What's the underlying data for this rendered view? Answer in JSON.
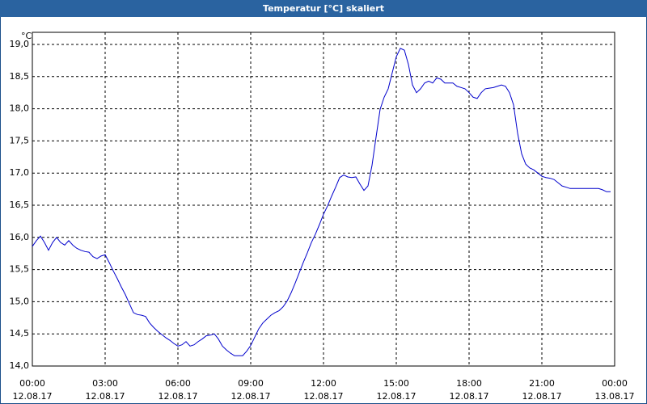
{
  "chart_data": {
    "type": "line",
    "title": "Temperatur [°C] skaliert",
    "y_unit": "°C",
    "color": "#0000cc",
    "grid": true,
    "x": [
      0,
      10,
      20,
      30,
      40,
      50,
      60,
      70,
      80,
      90,
      100,
      110,
      120,
      130,
      140,
      150,
      160,
      170,
      180,
      190,
      200,
      210,
      220,
      230,
      240,
      250,
      260,
      270,
      280,
      290,
      300,
      310,
      320,
      330,
      340,
      350,
      360,
      370,
      380,
      390,
      400,
      410,
      420,
      430,
      440,
      450,
      460,
      470,
      480,
      490,
      500,
      510,
      520,
      530,
      540,
      550,
      560,
      570,
      580,
      590,
      600,
      610,
      620,
      630,
      640,
      650,
      660,
      670,
      680,
      690,
      700,
      710,
      720,
      730,
      740,
      750,
      760,
      770,
      780,
      790,
      800,
      810,
      820,
      830,
      840,
      850,
      860,
      870,
      880,
      890,
      900,
      910,
      920,
      930,
      940,
      950,
      960,
      970,
      980,
      990,
      1000,
      1010,
      1020,
      1030,
      1040,
      1050,
      1060,
      1070,
      1080,
      1090,
      1100,
      1110,
      1120,
      1130,
      1140,
      1150,
      1160,
      1170,
      1180,
      1190,
      1200,
      1210,
      1220,
      1230,
      1240,
      1250,
      1260,
      1270,
      1280,
      1290,
      1300,
      1310,
      1320,
      1330,
      1340,
      1350,
      1360,
      1370,
      1380,
      1390,
      1400,
      1410,
      1420,
      1430
    ],
    "values": [
      15.86,
      15.95,
      16.02,
      15.92,
      15.8,
      15.92,
      16.0,
      15.92,
      15.88,
      15.95,
      15.88,
      15.83,
      15.8,
      15.78,
      15.77,
      15.7,
      15.67,
      15.71,
      15.73,
      15.61,
      15.48,
      15.36,
      15.23,
      15.11,
      14.97,
      14.83,
      14.8,
      14.79,
      14.77,
      14.67,
      14.6,
      14.54,
      14.49,
      14.44,
      14.4,
      14.35,
      14.31,
      14.33,
      14.38,
      14.31,
      14.33,
      14.38,
      14.42,
      14.47,
      14.48,
      14.5,
      14.42,
      14.31,
      14.25,
      14.2,
      14.16,
      14.16,
      14.16,
      14.23,
      14.32,
      14.45,
      14.58,
      14.67,
      14.73,
      14.79,
      14.83,
      14.86,
      14.92,
      15.01,
      15.14,
      15.29,
      15.45,
      15.61,
      15.76,
      15.92,
      16.05,
      16.2,
      16.36,
      16.49,
      16.64,
      16.78,
      16.93,
      16.97,
      16.94,
      16.93,
      16.94,
      16.83,
      16.73,
      16.8,
      17.12,
      17.56,
      17.99,
      18.18,
      18.31,
      18.56,
      18.81,
      18.94,
      18.91,
      18.69,
      18.37,
      18.25,
      18.31,
      18.4,
      18.43,
      18.4,
      18.48,
      18.46,
      18.4,
      18.4,
      18.4,
      18.35,
      18.33,
      18.31,
      18.25,
      18.18,
      18.16,
      18.25,
      18.31,
      18.32,
      18.33,
      18.35,
      18.37,
      18.35,
      18.25,
      18.06,
      17.62,
      17.3,
      17.14,
      17.08,
      17.05,
      17.0,
      16.95,
      16.93,
      16.92,
      16.9,
      16.85,
      16.8,
      16.78,
      16.76,
      16.76,
      16.76,
      16.76,
      16.76,
      16.76,
      16.76,
      16.76,
      16.74,
      16.71,
      16.71
    ],
    "xlim": [
      0,
      1440
    ],
    "xticks": [
      {
        "value": 0,
        "label": "00:00",
        "date": "12.08.17"
      },
      {
        "value": 180,
        "label": "03:00",
        "date": "12.08.17"
      },
      {
        "value": 360,
        "label": "06:00",
        "date": "12.08.17"
      },
      {
        "value": 540,
        "label": "09:00",
        "date": "12.08.17"
      },
      {
        "value": 720,
        "label": "12:00",
        "date": "12.08.17"
      },
      {
        "value": 900,
        "label": "15:00",
        "date": "12.08.17"
      },
      {
        "value": 1080,
        "label": "18:00",
        "date": "12.08.17"
      },
      {
        "value": 1260,
        "label": "21:00",
        "date": "12.08.17"
      },
      {
        "value": 1440,
        "label": "00:00",
        "date": "13.08.17"
      }
    ],
    "ylim": [
      14,
      19
    ],
    "yticks": [
      {
        "value": 14,
        "label": "14,0"
      },
      {
        "value": 14.5,
        "label": "14,5"
      },
      {
        "value": 15,
        "label": "15,0"
      },
      {
        "value": 15.5,
        "label": "15,5"
      },
      {
        "value": 16,
        "label": "16,0"
      },
      {
        "value": 16.5,
        "label": "16,5"
      },
      {
        "value": 17,
        "label": "17,0"
      },
      {
        "value": 17.5,
        "label": "17,5"
      },
      {
        "value": 18,
        "label": "18,0"
      },
      {
        "value": 18.5,
        "label": "18,5"
      },
      {
        "value": 19,
        "label": "19,0"
      }
    ]
  }
}
